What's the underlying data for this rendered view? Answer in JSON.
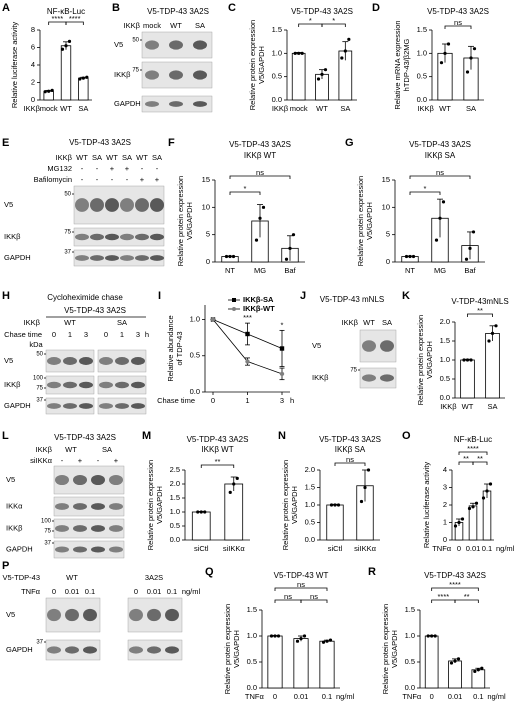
{
  "panels": [
    {
      "type": "bar",
      "letter": "A",
      "title": "NF-κB-Luc",
      "y_label": [
        "Relative luciferase activity"
      ],
      "ylim": [
        0,
        8
      ],
      "yticks": [
        0,
        2,
        4,
        6,
        8
      ],
      "group_label": "IKKβ",
      "categories": [
        "mock",
        "WT",
        "SA"
      ],
      "values": [
        1,
        6.2,
        2.5
      ],
      "errors": [
        0.1,
        0.45,
        0.1
      ],
      "points": [
        [
          0.95,
          1,
          1.1
        ],
        [
          5.8,
          6.2,
          6.7
        ],
        [
          2.4,
          2.5,
          2.6
        ]
      ],
      "significance": [
        "****",
        "****"
      ],
      "color": "#000000",
      "bar_fill": "#ffffff"
    },
    {
      "type": "blot",
      "letter": "B",
      "title": "V5-TDP-43 3A2S",
      "headers": [
        [
          "IKKβ",
          "mock",
          "WT",
          "SA"
        ]
      ],
      "bands": [
        {
          "name": "V5",
          "kda": [
            "50"
          ]
        },
        {
          "name": "IKKβ",
          "kda": [
            "75"
          ]
        },
        {
          "name": "GAPDH",
          "kda": []
        }
      ]
    },
    {
      "type": "bar",
      "letter": "C",
      "title": "V5-TDP-43 3A2S",
      "y_label": [
        "Relative protein expression",
        "V5/GAPDH"
      ],
      "ylim": [
        0,
        1.5
      ],
      "yticks": [
        {
          "value": 0,
          "label": "0.0"
        },
        0.5,
        {
          "value": 1,
          "label": "1.0"
        },
        1.5
      ],
      "group_label": "IKKβ",
      "categories": [
        "mock",
        "WT",
        "SA"
      ],
      "values": [
        1,
        0.55,
        1.05
      ],
      "errors": [
        0.02,
        0.1,
        0.2
      ],
      "points": [
        [
          1,
          1,
          1
        ],
        [
          0.45,
          0.55,
          0.65
        ],
        [
          0.9,
          1.05,
          1.3
        ]
      ],
      "significance": [
        "*",
        "*"
      ],
      "color": "#000000",
      "bar_fill": "#ffffff"
    },
    {
      "type": "bar",
      "letter": "D",
      "title": "V5-TDP-43 3A2S",
      "y_label": [
        "Relative mRNA expression",
        "hTDP-43/β2MG"
      ],
      "ylim": [
        0,
        1.5
      ],
      "yticks": [
        {
          "value": 0,
          "label": "0.0"
        },
        0.5,
        {
          "value": 1,
          "label": "1.0"
        },
        1.5
      ],
      "group_label": "IKKβ",
      "categories": [
        "WT",
        "SA"
      ],
      "values": [
        1,
        0.9
      ],
      "errors": [
        0.2,
        0.25
      ],
      "points": [
        [
          0.8,
          1,
          1.2
        ],
        [
          0.6,
          0.9,
          1.1
        ]
      ],
      "significance": [
        "ns"
      ],
      "color": "#000000",
      "bar_fill": "#ffffff"
    },
    {
      "type": "blot",
      "letter": "E",
      "title": "V5-TDP-43 3A2S",
      "headers": [
        [
          "IKKβ",
          "WT",
          "SA",
          "WT",
          "SA",
          "WT",
          "SA"
        ],
        [
          "MG132",
          "-",
          "-",
          "+",
          "+",
          "-",
          "-"
        ],
        [
          "Bafilomycin",
          "-",
          "-",
          "-",
          "-",
          "+",
          "+"
        ]
      ],
      "bands": [
        {
          "name": "V5",
          "kda": [
            "50"
          ]
        },
        {
          "name": "IKKβ",
          "kda": [
            "75"
          ]
        },
        {
          "name": "GAPDH",
          "kda": [
            "37"
          ]
        }
      ]
    },
    {
      "type": "bar",
      "letter": "F",
      "title": "V5-TDP-43 3A2S",
      "subtitle": "IKKβ WT",
      "y_label": [
        "Relative protein expression",
        "V5/GAPDH"
      ],
      "ylim": [
        0,
        15
      ],
      "yticks": [
        0,
        5,
        10,
        15
      ],
      "categories": [
        "NT",
        "MG",
        "Baf"
      ],
      "values": [
        1,
        7.5,
        2.5
      ],
      "errors": [
        0.1,
        3,
        2.3
      ],
      "points": [
        [
          1,
          1,
          1
        ],
        [
          4,
          8,
          10
        ],
        [
          0.5,
          2.5,
          5
        ]
      ],
      "significance": [
        "*",
        "ns"
      ],
      "color": "#000000",
      "bar_fill": "#ffffff"
    },
    {
      "type": "bar",
      "letter": "G",
      "title": "V5-TDP-43 3A2S",
      "subtitle": "IKKβ SA",
      "y_label": [
        "Relative protein expression",
        "V5/GAPDH"
      ],
      "ylim": [
        0,
        15
      ],
      "yticks": [
        0,
        5,
        10,
        15
      ],
      "categories": [
        "NT",
        "MG",
        "Baf"
      ],
      "values": [
        1,
        8,
        3
      ],
      "errors": [
        0.1,
        3.5,
        2.5
      ],
      "points": [
        [
          1,
          1,
          1
        ],
        [
          4,
          8,
          11
        ],
        [
          0.5,
          2.5,
          5.5
        ]
      ],
      "significance": [
        "*",
        "ns"
      ],
      "color": "#000000",
      "bar_fill": "#ffffff"
    },
    {
      "type": "blot",
      "letter": "H",
      "title": "Cycloheximide chase",
      "subtitle": "V5-TDP-43 3A2S",
      "headers": [
        [
          "IKKβ",
          "WT",
          "SA"
        ],
        [
          "Chase time",
          "0",
          "1",
          "3",
          "0",
          "1",
          "3",
          "h"
        ],
        [
          "kDa"
        ]
      ],
      "bands": [
        {
          "name": "V5",
          "kda": [
            "50"
          ]
        },
        {
          "name": "IKKβ",
          "kda": [
            "100",
            "75"
          ]
        },
        {
          "name": "GAPDH",
          "kda": [
            "37"
          ]
        }
      ]
    },
    {
      "type": "line",
      "letter": "I",
      "y_label": [
        "Relative abundance",
        "of TDP-43"
      ],
      "ylim": [
        0,
        1.2
      ],
      "yticks": [
        {
          "value": 0,
          "label": "0.0"
        },
        0.5,
        {
          "value": 1,
          "label": "1.0"
        }
      ],
      "group_label": "Chase time",
      "unit": "h",
      "categories": [
        "0",
        "1",
        "3"
      ],
      "series": [
        {
          "name": "IKKβ-SA",
          "color": "#000000",
          "marker": "square",
          "values": [
            1,
            0.8,
            0.6
          ],
          "errors": [
            0,
            0.15,
            0.25
          ]
        },
        {
          "name": "IKKβ-WT",
          "color": "#808080",
          "marker": "circle",
          "values": [
            1,
            0.42,
            0.25
          ],
          "errors": [
            0,
            0.05,
            0.08
          ]
        }
      ],
      "significance": [
        "***",
        "*"
      ]
    },
    {
      "type": "blot",
      "letter": "J",
      "title": "V5-TDP-43 mNLS",
      "headers": [
        [
          "IKKβ",
          "WT",
          "SA"
        ]
      ],
      "bands": [
        {
          "name": "V5",
          "kda": []
        },
        {
          "name": "IKKβ",
          "kda": [
            "75"
          ]
        }
      ]
    },
    {
      "type": "bar",
      "letter": "K",
      "title": "V-TDP-43mNLS",
      "y_label": [
        "Relative protein expression",
        "V5/GAPDH"
      ],
      "ylim": [
        0,
        2
      ],
      "yticks": [
        {
          "value": 0,
          "label": "0.0"
        },
        0.5,
        {
          "value": 1,
          "label": "1.0"
        },
        1.5,
        {
          "value": 2,
          "label": "2.0"
        }
      ],
      "group_label": "IKKβ",
      "categories": [
        "WT",
        "SA"
      ],
      "values": [
        1,
        1.7
      ],
      "errors": [
        0.02,
        0.2
      ],
      "points": [
        [
          1,
          1,
          1
        ],
        [
          1.5,
          1.7,
          1.9
        ]
      ],
      "significance": [
        "**"
      ],
      "color": "#000000",
      "bar_fill": "#ffffff"
    },
    {
      "type": "blot",
      "letter": "L",
      "title": "V5-TDP-43 3A2S",
      "headers": [
        [
          "IKKβ",
          "WT",
          "SA"
        ],
        [
          "siIKKα",
          "-",
          "+",
          "-",
          "+"
        ]
      ],
      "bands": [
        {
          "name": "V5",
          "kda": []
        },
        {
          "name": "IKKα",
          "kda": []
        },
        {
          "name": "IKKβ",
          "kda": [
            "100",
            "75"
          ]
        },
        {
          "name": "GAPDH",
          "kda": [
            "37"
          ]
        }
      ]
    },
    {
      "type": "bar",
      "letter": "M",
      "title": "V5-TDP-43 3A2S",
      "subtitle": "IKKβ WT",
      "y_label": [
        "Relative protein expression",
        "V5/GAPDH"
      ],
      "ylim": [
        0,
        2.5
      ],
      "yticks": [
        {
          "value": 0,
          "label": "0.0"
        },
        0.5,
        {
          "value": 1,
          "label": "1.0"
        },
        1.5,
        {
          "value": 2,
          "label": "2.0"
        },
        2.5
      ],
      "categories": [
        "siCtl",
        "siIKKα"
      ],
      "values": [
        1,
        2
      ],
      "errors": [
        0.02,
        0.25
      ],
      "points": [
        [
          1,
          1,
          1
        ],
        [
          1.7,
          2,
          2.2
        ]
      ],
      "significance": [
        "**"
      ],
      "color": "#000000",
      "bar_fill": "#ffffff"
    },
    {
      "type": "bar",
      "letter": "N",
      "title": "V5-TDP-43 3A2S",
      "subtitle": "IKKβ SA",
      "y_label": [
        "Relative protein expression",
        "V5/GAPDH"
      ],
      "ylim": [
        0,
        2
      ],
      "yticks": [
        {
          "value": 0,
          "label": "0.0"
        },
        0.5,
        {
          "value": 1,
          "label": "1.0"
        },
        1.5,
        {
          "value": 2,
          "label": "2.0"
        }
      ],
      "categories": [
        "siCtl",
        "siIKKα"
      ],
      "values": [
        1,
        1.55
      ],
      "errors": [
        0.02,
        0.45
      ],
      "points": [
        [
          1,
          1,
          1
        ],
        [
          1.1,
          1.5,
          2
        ]
      ],
      "significance": [
        "ns"
      ],
      "color": "#000000",
      "bar_fill": "#ffffff"
    },
    {
      "type": "bar",
      "letter": "O",
      "title": "NF-κB-Luc",
      "y_label": [
        "Relative luciferase activity"
      ],
      "ylim": [
        0,
        4
      ],
      "yticks": [
        0,
        1,
        2,
        3,
        4
      ],
      "group_label": "TNFα",
      "unit": "ng/ml",
      "categories": [
        "0",
        "0.01",
        "0.1"
      ],
      "values": [
        1,
        1.95,
        2.8
      ],
      "errors": [
        0.2,
        0.15,
        0.4
      ],
      "points": [
        [
          0.8,
          1,
          1.2
        ],
        [
          1.8,
          1.9,
          2.1
        ],
        [
          2.4,
          2.8,
          3.2
        ]
      ],
      "significance": [
        "****",
        "**",
        "**"
      ],
      "color": "#000000",
      "bar_fill": "#ffffff"
    },
    {
      "type": "blot",
      "letter": "P",
      "headers": [
        [
          "V5-TDP-43",
          "WT",
          "3A2S"
        ],
        [
          "TNFα",
          "0",
          "0.01",
          "0.1",
          "0",
          "0.01",
          "0.1",
          "ng/ml"
        ]
      ],
      "bands": [
        {
          "name": "V5",
          "kda": []
        },
        {
          "name": "GAPDH",
          "kda": [
            "37"
          ]
        }
      ]
    },
    {
      "type": "bar",
      "letter": "Q",
      "title": "V5-TDP-43 WT",
      "y_label": [
        "Relative protein expression",
        "V5/GAPDH"
      ],
      "ylim": [
        0,
        1.5
      ],
      "yticks": [
        {
          "value": 0,
          "label": "0.0"
        },
        0.5,
        {
          "value": 1,
          "label": "1.0"
        },
        1.5
      ],
      "group_label": "TNFα",
      "unit": "ng/ml",
      "categories": [
        "0",
        "0.01",
        "0.1"
      ],
      "values": [
        1,
        0.95,
        0.9
      ],
      "errors": [
        0.01,
        0.05,
        0.02
      ],
      "points": [
        [
          1,
          1,
          1
        ],
        [
          0.9,
          0.95,
          1
        ],
        [
          0.88,
          0.9,
          0.92
        ]
      ],
      "significance": [
        "ns",
        "ns",
        "ns"
      ],
      "color": "#000000",
      "bar_fill": "#ffffff"
    },
    {
      "type": "bar",
      "letter": "R",
      "title": "V5-TDP-43 3A2S",
      "y_label": [
        "Relative protein expression",
        "V5/GAPDH"
      ],
      "ylim": [
        0,
        1.5
      ],
      "yticks": [
        {
          "value": 0,
          "label": "0.0"
        },
        0.5,
        {
          "value": 1,
          "label": "1.0"
        },
        1.5
      ],
      "group_label": "TNFα",
      "unit": "ng/ml",
      "categories": [
        "0",
        "0.01",
        "0.1"
      ],
      "values": [
        1,
        0.52,
        0.35
      ],
      "errors": [
        0.01,
        0.04,
        0.03
      ],
      "points": [
        [
          1,
          1,
          1
        ],
        [
          0.48,
          0.52,
          0.56
        ],
        [
          0.32,
          0.35,
          0.38
        ]
      ],
      "significance": [
        "****",
        "****",
        "**"
      ],
      "color": "#000000",
      "bar_fill": "#ffffff"
    }
  ]
}
